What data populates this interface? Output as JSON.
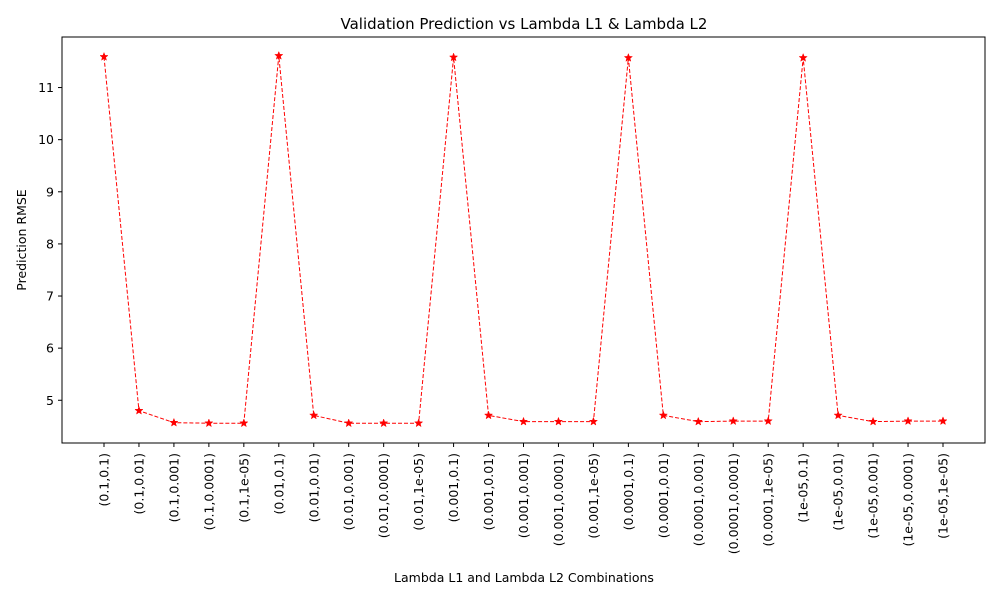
{
  "chart_data": {
    "type": "line",
    "title": "Validation Prediction vs Lambda L1 & Lambda L2",
    "xlabel": "Lambda L1 and Lambda L2 Combinations",
    "ylabel": "Prediction RMSE",
    "categories": [
      "(0.1,0.1)",
      "(0.1,0.01)",
      "(0.1,0.001)",
      "(0.1,0.0001)",
      "(0.1,1e-05)",
      "(0.01,0.1)",
      "(0.01,0.01)",
      "(0.01,0.001)",
      "(0.01,0.0001)",
      "(0.01,1e-05)",
      "(0.001,0.1)",
      "(0.001,0.01)",
      "(0.001,0.001)",
      "(0.001,0.0001)",
      "(0.001,1e-05)",
      "(0.0001,0.1)",
      "(0.0001,0.01)",
      "(0.0001,0.001)",
      "(0.0001,0.0001)",
      "(0.0001,1e-05)",
      "(1e-05,0.1)",
      "(1e-05,0.01)",
      "(1e-05,0.001)",
      "(1e-05,0.0001)",
      "(1e-05,1e-05)"
    ],
    "values": [
      11.59,
      4.8,
      4.57,
      4.56,
      4.56,
      11.61,
      4.71,
      4.56,
      4.56,
      4.56,
      11.58,
      4.71,
      4.59,
      4.59,
      4.59,
      11.57,
      4.71,
      4.59,
      4.6,
      4.6,
      11.57,
      4.71,
      4.59,
      4.6,
      4.6
    ],
    "yticks": [
      5,
      6,
      7,
      8,
      9,
      10,
      11
    ],
    "ylim": [
      4.18,
      11.97
    ],
    "line_color": "#ff0000",
    "line_style": "dashed",
    "marker": "star",
    "grid": false
  }
}
